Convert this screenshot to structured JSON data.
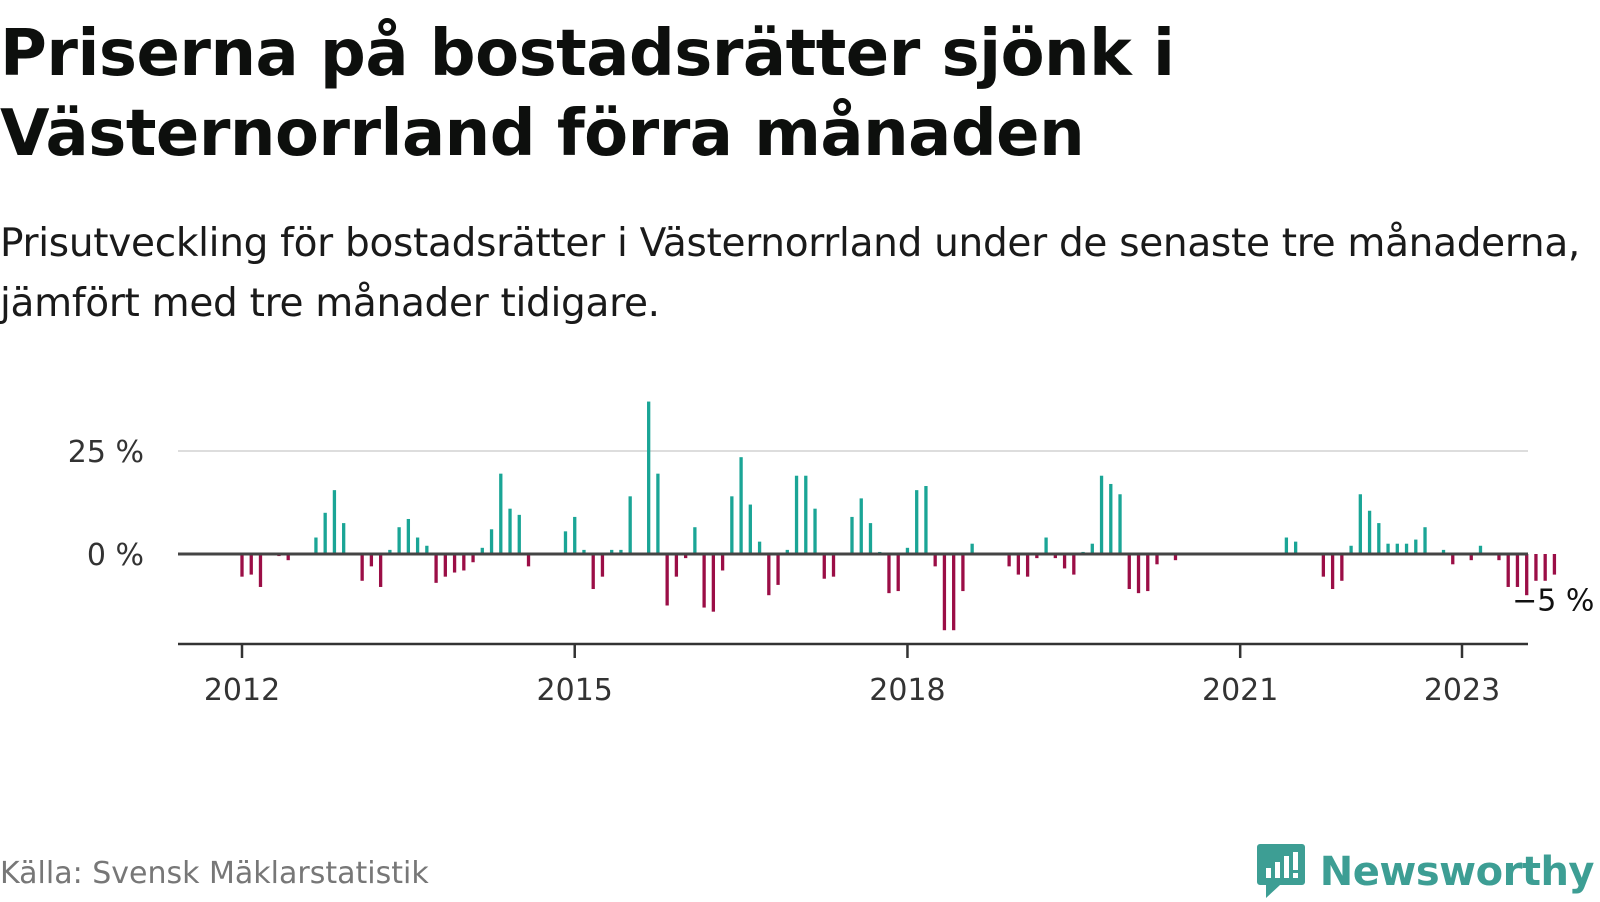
{
  "title": "Priserna på bostadsrätter sjönk i Västernorrland förra månaden",
  "subtitle": "Prisutveckling för bostadsrätter i Västernorrland under de senaste tre månaderna, jämfört med tre månader tidigare.",
  "source": "Källa: Svensk Mäklarstatistik",
  "brand": {
    "name": "Newsworthy",
    "icon": "newsworthy-logo-icon",
    "color": "#3d9e94"
  },
  "colors": {
    "positive": "#1aa596",
    "negative": "#9b0e46",
    "zero_line": "#444444",
    "grid": "#dddddd"
  },
  "chart_data": {
    "type": "bar",
    "title": "",
    "xlabel": "",
    "ylabel": "",
    "x_start": "2012-01",
    "x_end": "2023-01",
    "x_ticks": [
      {
        "x": "2012-01",
        "label": "2012"
      },
      {
        "x": "2015-01",
        "label": "2015"
      },
      {
        "x": "2018-01",
        "label": "2018"
      },
      {
        "x": "2021-01",
        "label": "2021"
      },
      {
        "x": "2023-01",
        "label": "2023"
      }
    ],
    "y_ticks": [
      {
        "y": 0,
        "label": "0 %"
      },
      {
        "y": 25,
        "label": "25 %"
      }
    ],
    "ylim": [
      -22,
      37
    ],
    "grid": true,
    "last_label": "−5 %",
    "values": [
      -5.5,
      -5,
      -8,
      null,
      -0.5,
      -1.5,
      null,
      null,
      4,
      10,
      15.5,
      7.5,
      null,
      -6.5,
      -3,
      -8,
      1,
      6.5,
      8.5,
      4,
      2,
      -7,
      -5.5,
      -4.5,
      -4,
      -2,
      1.5,
      6,
      19.5,
      11,
      9.5,
      -3,
      null,
      null,
      null,
      5.5,
      9,
      1,
      -8.5,
      -5.5,
      1,
      1,
      14,
      null,
      37,
      19.5,
      -12.5,
      -5.5,
      -1,
      6.5,
      -13,
      -14,
      -4,
      14,
      23.5,
      12,
      3,
      -10,
      -7.5,
      1,
      19,
      19,
      11,
      -6,
      -5.5,
      null,
      9,
      13.5,
      7.5,
      0.5,
      -9.5,
      -9,
      1.5,
      15.5,
      16.5,
      -3,
      -18.5,
      -18.5,
      -9,
      2.5,
      null,
      null,
      null,
      -3,
      -5,
      -5.5,
      -1,
      4,
      -1,
      -3.5,
      -5,
      0.5,
      2.5,
      19,
      17,
      14.5,
      -8.5,
      -9.5,
      -9,
      -2.5,
      null,
      -1.5,
      null,
      null,
      null,
      null,
      null,
      null,
      null,
      null,
      null,
      null,
      null,
      4,
      3,
      null,
      null,
      -5.5,
      -8.5,
      -6.5,
      2,
      14.5,
      10.5,
      7.5,
      2.5,
      2.5,
      2.5,
      3.5,
      6.5,
      null,
      1,
      -2.5,
      null,
      -1.5,
      2,
      null,
      -1.5,
      -8,
      -8,
      -10,
      -6.5,
      -6.5,
      -5
    ]
  }
}
